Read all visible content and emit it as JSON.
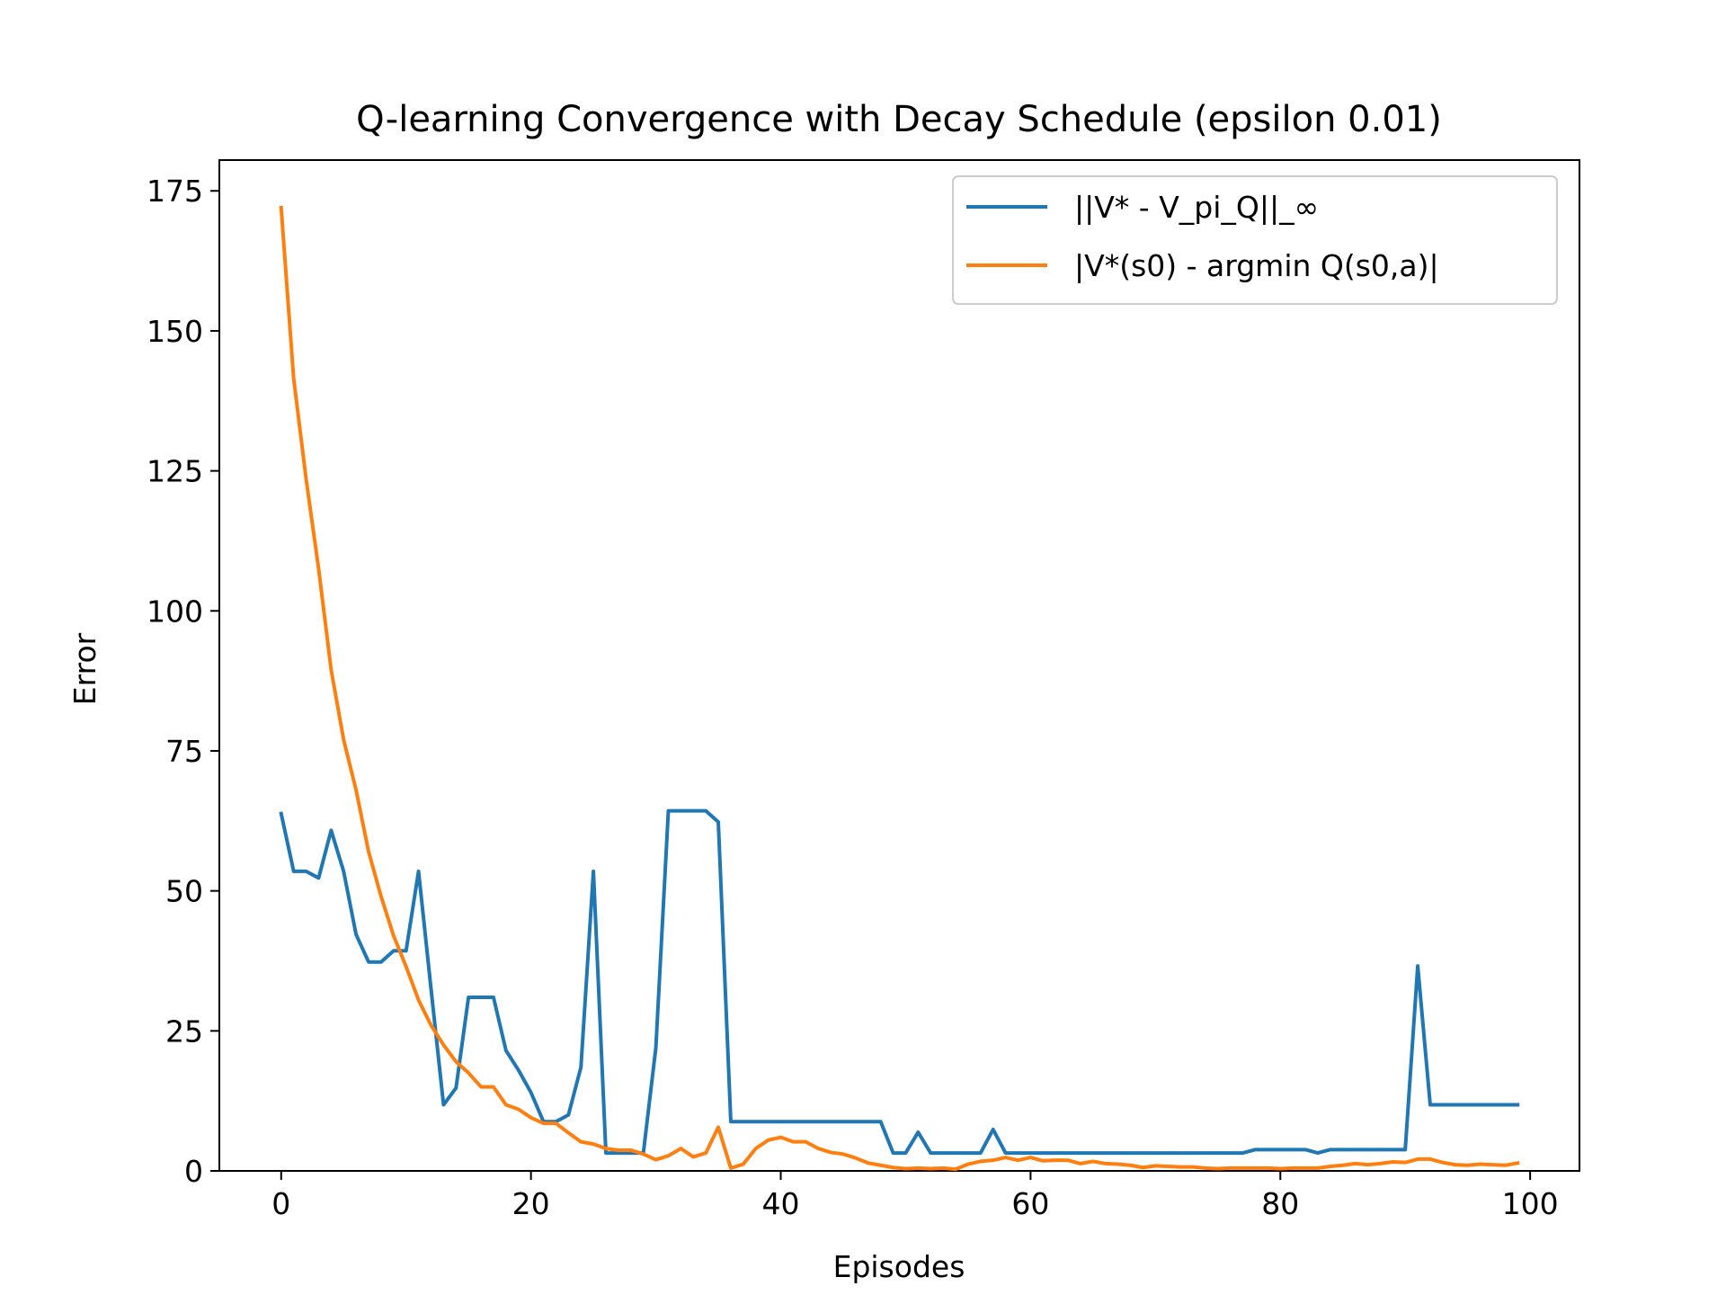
{
  "chart_data": {
    "type": "line",
    "title": "Q-learning Convergence with Decay Schedule (epsilon 0.01)",
    "xlabel": "Episodes",
    "ylabel": "Error",
    "xlim": [
      -4.95,
      103.95
    ],
    "ylim": [
      0,
      180.5
    ],
    "xticks": [
      0,
      20,
      40,
      60,
      80,
      100
    ],
    "yticks": [
      0,
      25,
      50,
      75,
      100,
      125,
      150,
      175
    ],
    "grid": false,
    "legend_position": "top-right",
    "series": [
      {
        "name": "||V* - V_pi_Q||_∞",
        "color": "#1f77b4",
        "values": [
          63.8,
          53.5,
          53.5,
          52.3,
          60.8,
          53.5,
          42.2,
          37.3,
          37.3,
          39.3,
          39.3,
          53.5,
          32.5,
          11.8,
          14.8,
          31.0,
          31.0,
          31.0,
          21.5,
          18.0,
          14.0,
          8.8,
          8.8,
          10.0,
          18.5,
          53.5,
          3.2,
          3.2,
          3.2,
          3.2,
          22.0,
          64.3,
          64.3,
          64.3,
          64.3,
          62.3,
          8.8,
          8.8,
          8.8,
          8.8,
          8.8,
          8.8,
          8.8,
          8.8,
          8.8,
          8.8,
          8.8,
          8.8,
          8.8,
          3.2,
          3.2,
          6.9,
          3.2,
          3.2,
          3.2,
          3.2,
          3.2,
          7.4,
          3.2,
          3.2,
          3.2,
          3.2,
          3.2,
          3.2,
          3.2,
          3.2,
          3.2,
          3.2,
          3.2,
          3.2,
          3.2,
          3.2,
          3.2,
          3.2,
          3.2,
          3.2,
          3.2,
          3.2,
          3.8,
          3.8,
          3.8,
          3.8,
          3.8,
          3.2,
          3.8,
          3.8,
          3.8,
          3.8,
          3.8,
          3.8,
          3.8,
          36.6,
          11.8,
          11.8,
          11.8,
          11.8,
          11.8,
          11.8,
          11.8,
          11.8
        ]
      },
      {
        "name": "|V*(s0) - argmin Q(s0,a)|",
        "color": "#ff7f0e",
        "values": [
          172.0,
          141.5,
          123.5,
          107.5,
          89.5,
          77.0,
          68.0,
          57.0,
          49.0,
          42.0,
          36.5,
          30.5,
          26.0,
          22.5,
          19.5,
          17.5,
          15.0,
          15.0,
          11.8,
          11.0,
          9.5,
          8.5,
          8.5,
          6.8,
          5.2,
          4.8,
          4.0,
          3.7,
          3.7,
          3.0,
          2.0,
          2.7,
          4.0,
          2.5,
          3.2,
          7.8,
          0.5,
          1.2,
          4.0,
          5.5,
          6.0,
          5.2,
          5.2,
          4.0,
          3.3,
          3.0,
          2.3,
          1.4,
          1.0,
          0.6,
          0.4,
          0.5,
          0.4,
          0.5,
          0.3,
          1.2,
          1.7,
          1.9,
          2.4,
          1.9,
          2.4,
          1.8,
          1.9,
          1.9,
          1.3,
          1.7,
          1.3,
          1.2,
          1.0,
          0.6,
          0.9,
          0.8,
          0.7,
          0.7,
          0.5,
          0.4,
          0.5,
          0.5,
          0.5,
          0.5,
          0.4,
          0.5,
          0.5,
          0.5,
          0.8,
          1.0,
          1.3,
          1.1,
          1.3,
          1.6,
          1.5,
          2.1,
          2.1,
          1.5,
          1.1,
          1.0,
          1.2,
          1.1,
          1.0,
          1.4
        ]
      }
    ]
  }
}
